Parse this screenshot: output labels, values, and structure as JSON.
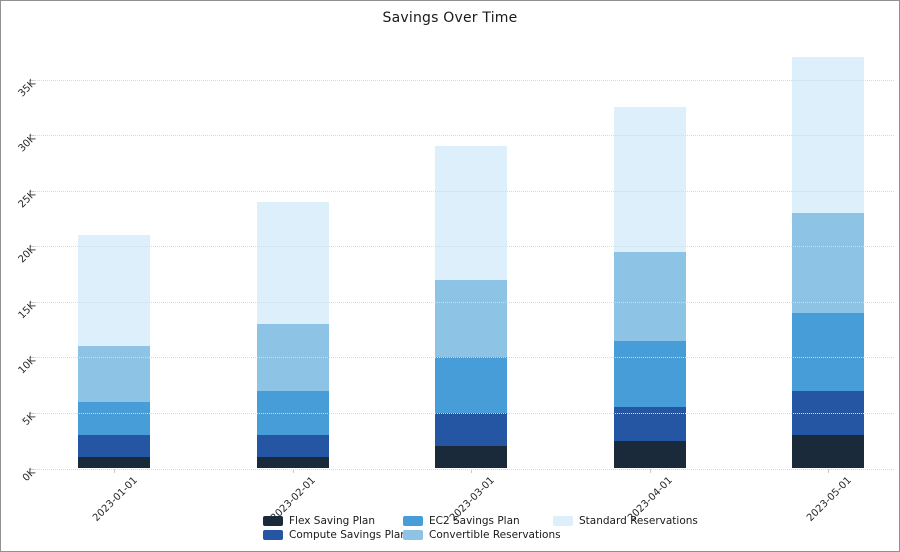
{
  "chart_data": {
    "type": "bar",
    "stacked": true,
    "title": "Savings Over Time",
    "categories": [
      "2023-01-01",
      "2023-02-01",
      "2023-03-01",
      "2023-04-01",
      "2023-05-01"
    ],
    "series": [
      {
        "name": "Flex Saving Plan",
        "color": "#1b2a3b",
        "values": [
          1000,
          1000,
          2000,
          2500,
          3000
        ]
      },
      {
        "name": "Compute Savings Plan",
        "color": "#2456a4",
        "values": [
          2000,
          2000,
          3000,
          3000,
          4000
        ]
      },
      {
        "name": "EC2 Savings Plan",
        "color": "#479dd8",
        "values": [
          3000,
          4000,
          5000,
          6000,
          7000
        ]
      },
      {
        "name": "Convertible Reservations",
        "color": "#8dc4e6",
        "values": [
          5000,
          6000,
          7000,
          8000,
          9000
        ]
      },
      {
        "name": "Standard Reservations",
        "color": "#ddeffb",
        "values": [
          10000,
          11000,
          12000,
          13000,
          14000
        ]
      }
    ],
    "xlabel": "",
    "ylabel": "",
    "ylim": [
      0,
      38000
    ],
    "yticks": {
      "values": [
        0,
        5000,
        10000,
        15000,
        20000,
        25000,
        30000,
        35000
      ],
      "labels": [
        "0K",
        "5K",
        "10K",
        "15K",
        "20K",
        "25K",
        "30K",
        "35K"
      ]
    },
    "grid": "horizontal-dotted",
    "legend_position": "bottom",
    "tick_label_rotation_deg": -45
  }
}
